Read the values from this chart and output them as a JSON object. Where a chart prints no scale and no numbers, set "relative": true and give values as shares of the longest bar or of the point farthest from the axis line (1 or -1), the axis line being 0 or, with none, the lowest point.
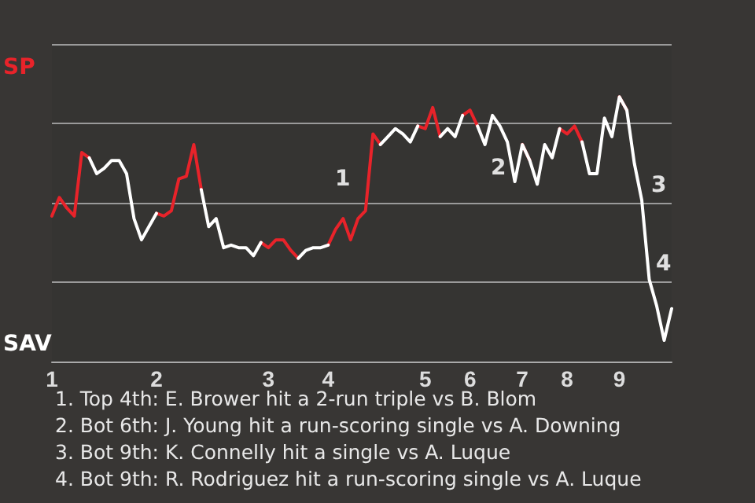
{
  "chart_data": {
    "type": "line",
    "relative": true,
    "categories": [
      "1",
      null,
      null,
      null,
      null,
      null,
      null,
      null,
      null,
      null,
      null,
      null,
      null,
      null,
      "2",
      null,
      null,
      null,
      null,
      null,
      null,
      null,
      null,
      null,
      null,
      null,
      null,
      null,
      null,
      "3",
      null,
      null,
      null,
      null,
      null,
      null,
      null,
      "4",
      null,
      null,
      null,
      null,
      null,
      null,
      null,
      null,
      null,
      null,
      null,
      null,
      "5",
      null,
      null,
      null,
      null,
      null,
      "6",
      null,
      null,
      null,
      null,
      null,
      null,
      "7",
      null,
      null,
      null,
      null,
      null,
      "8",
      null,
      null,
      null,
      null,
      null,
      null,
      "9",
      null,
      null,
      null,
      null,
      null,
      null,
      null
    ],
    "series": [
      {
        "color": "#e8232a",
        "values": [
          0.55,
          0.62,
          0.58,
          0.55,
          0.79,
          0.77,
          null,
          null,
          null,
          null,
          null,
          null,
          null,
          null,
          0.56,
          0.55,
          0.57,
          0.69,
          0.7,
          0.82,
          0.65,
          null,
          null,
          null,
          null,
          null,
          null,
          null,
          0.45,
          0.43,
          0.46,
          0.46,
          0.42,
          0.39,
          null,
          null,
          null,
          0.44,
          0.5,
          0.54,
          0.46,
          0.54,
          0.57,
          0.86,
          0.82,
          null,
          null,
          null,
          null,
          0.89,
          0.88,
          0.96,
          0.85,
          null,
          null,
          0.93,
          0.95,
          0.89,
          null,
          null,
          null,
          null,
          null,
          0.82,
          0.76,
          null,
          null,
          null,
          0.88,
          0.86,
          0.89,
          0.83,
          null,
          null,
          null,
          null,
          1,
          0.95,
          null,
          null,
          null,
          null,
          null,
          null
        ]
      },
      {
        "color": "#ffffff",
        "values": [
          null,
          null,
          null,
          null,
          null,
          0.77,
          0.71,
          0.73,
          0.76,
          0.76,
          0.71,
          0.54,
          0.46,
          0.51,
          0.56,
          null,
          null,
          null,
          null,
          null,
          0.65,
          0.51,
          0.54,
          0.43,
          0.44,
          0.43,
          0.43,
          0.4,
          0.45,
          null,
          null,
          null,
          null,
          0.39,
          0.42,
          0.43,
          0.43,
          0.44,
          null,
          null,
          null,
          null,
          null,
          null,
          0.82,
          0.85,
          0.88,
          0.86,
          0.83,
          0.89,
          null,
          null,
          0.85,
          0.88,
          0.85,
          0.93,
          null,
          0.89,
          0.82,
          0.93,
          0.89,
          0.83,
          0.68,
          0.82,
          0.76,
          0.67,
          0.82,
          0.77,
          0.88,
          null,
          null,
          0.83,
          0.71,
          0.71,
          0.92,
          0.85,
          1,
          0.95,
          0.75,
          0.61,
          0.31,
          0.21,
          0.08,
          0.2
        ]
      }
    ],
    "grid": "y",
    "marker": "none",
    "annotations": [
      "SP",
      "SAV",
      "1",
      "2",
      "3",
      "4",
      "1. Top 4th: E. Brower hit a 2-run triple vs B. Blom",
      "2. Bot 6th: J. Young hit a run-scoring single vs A. Downing",
      "3. Bot 9th: K. Connelly hit a single vs A. Luque",
      "4. Bot 9th: R. Rodriguez hit a run-scoring single vs A. Luque"
    ]
  }
}
